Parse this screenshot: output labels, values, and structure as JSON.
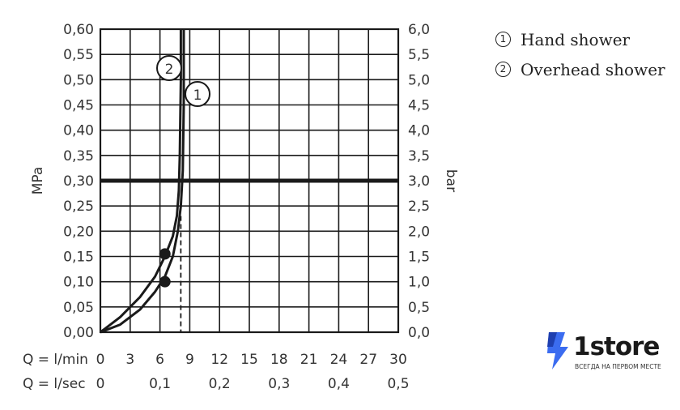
{
  "chart_data": {
    "type": "line",
    "ylabel_left": "MPa",
    "ylabel_right": "bar",
    "y_ticks_left": [
      "0,00",
      "0,05",
      "0,10",
      "0,15",
      "0,20",
      "0,25",
      "0,30",
      "0,35",
      "0,40",
      "0,45",
      "0,50",
      "0,55",
      "0,60"
    ],
    "y_ticks_right": [
      "0,0",
      "0,5",
      "1,0",
      "1,5",
      "2,0",
      "2,5",
      "3,0",
      "3,5",
      "4,0",
      "4,5",
      "5,0",
      "5,5",
      "6,0"
    ],
    "x_axis_min": {
      "label": "Q = l/min",
      "ticks": [
        "0",
        "3",
        "6",
        "9",
        "12",
        "15",
        "18",
        "21",
        "24",
        "27",
        "30"
      ]
    },
    "x_axis_sec": {
      "label": "Q = l/sec",
      "ticks": [
        "0",
        "0,1",
        "0,2",
        "0,3",
        "0,4",
        "0,5"
      ]
    },
    "xlim": [
      0,
      30
    ],
    "ylim": [
      0,
      0.6
    ],
    "reference_line_y": 0.3,
    "series": [
      {
        "marker": "1",
        "x": [
          0,
          2,
          4,
          5.5,
          6.5,
          7.3,
          7.8,
          8.1,
          8.3,
          8.4,
          8.4
        ],
        "y": [
          0,
          0.015,
          0.045,
          0.08,
          0.11,
          0.15,
          0.2,
          0.25,
          0.32,
          0.45,
          0.6
        ]
      },
      {
        "marker": "2",
        "x": [
          0,
          2,
          4,
          5.5,
          6.5,
          7.3,
          7.7,
          7.9,
          8.0,
          8.1,
          8.1
        ],
        "y": [
          0,
          0.03,
          0.07,
          0.11,
          0.15,
          0.19,
          0.23,
          0.28,
          0.35,
          0.5,
          0.6
        ]
      }
    ],
    "points": [
      {
        "x": 6.5,
        "y": 0.1
      },
      {
        "x": 6.5,
        "y": 0.155
      }
    ],
    "dashed_x": 8.1
  },
  "legend": [
    {
      "num": "1",
      "label": "Hand shower"
    },
    {
      "num": "2",
      "label": "Overhead shower"
    }
  ],
  "logo": {
    "name": "1store",
    "tagline": "ВСЕГДА НА ПЕРВОМ МЕСТЕ",
    "color": "#3b6cf0"
  }
}
